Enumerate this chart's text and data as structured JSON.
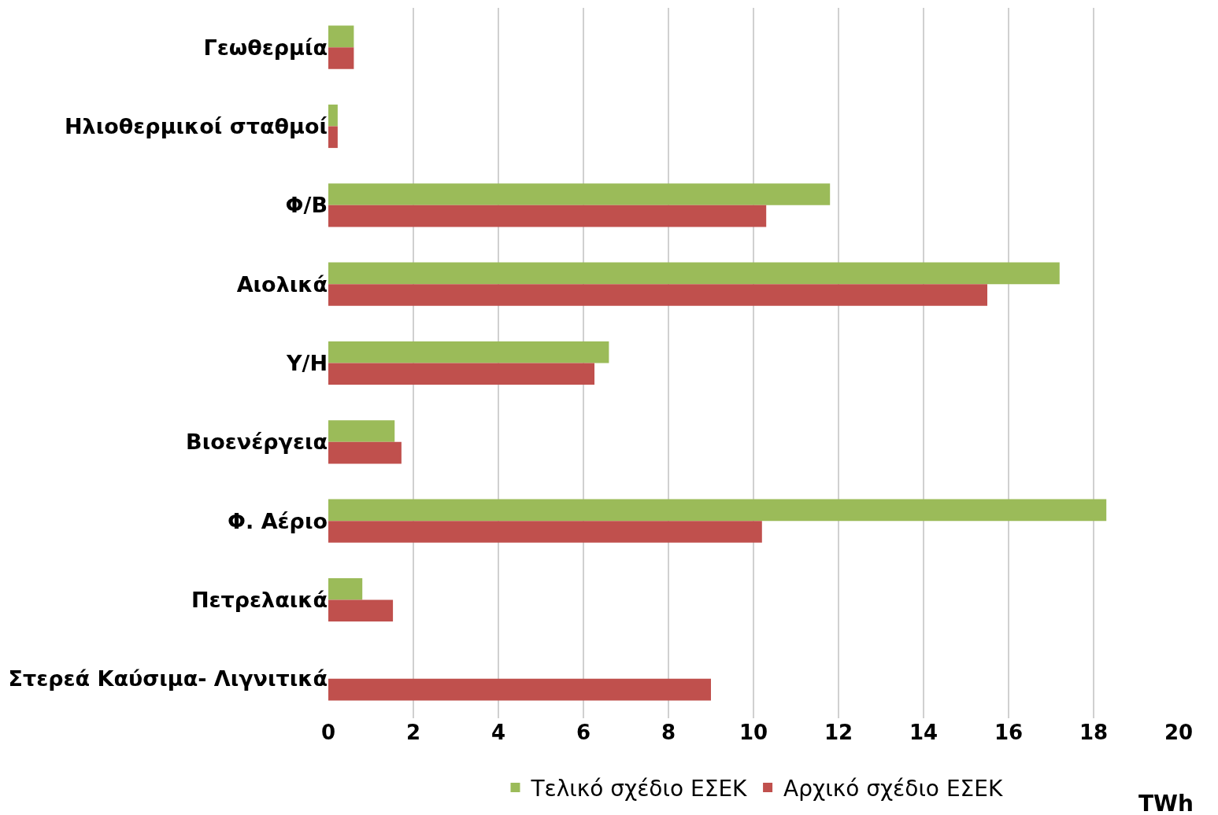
{
  "chart_data": {
    "type": "bar",
    "orientation": "horizontal",
    "xlabel": "TWh",
    "categories": [
      "Γεωθερμία",
      "Ηλιοθερμικοί σταθμοί",
      "Φ/Β",
      "Αιολικά",
      "Υ/Η",
      "Βιοενέργεια",
      "Φ. Αέριο",
      "Πετρελαικά",
      "Στερεά Καύσιμα- Λιγνιτικά"
    ],
    "series": [
      {
        "name": "Τελικό σχέδιο ΕΣΕΚ",
        "color": "#9bbb59",
        "values": [
          0.6,
          0.22,
          11.8,
          17.2,
          6.6,
          1.56,
          18.3,
          0.8,
          0
        ]
      },
      {
        "name": "Αρχικό σχέδιο ΕΣΕΚ",
        "color": "#c0504d",
        "values": [
          0.6,
          0.22,
          10.3,
          15.5,
          6.26,
          1.72,
          10.2,
          1.52,
          9.0
        ]
      }
    ],
    "xlim": [
      0,
      20
    ],
    "xticks": [
      0,
      2,
      4,
      6,
      8,
      10,
      12,
      14,
      16,
      18,
      20
    ],
    "grid": "x",
    "legend": "bottom"
  }
}
